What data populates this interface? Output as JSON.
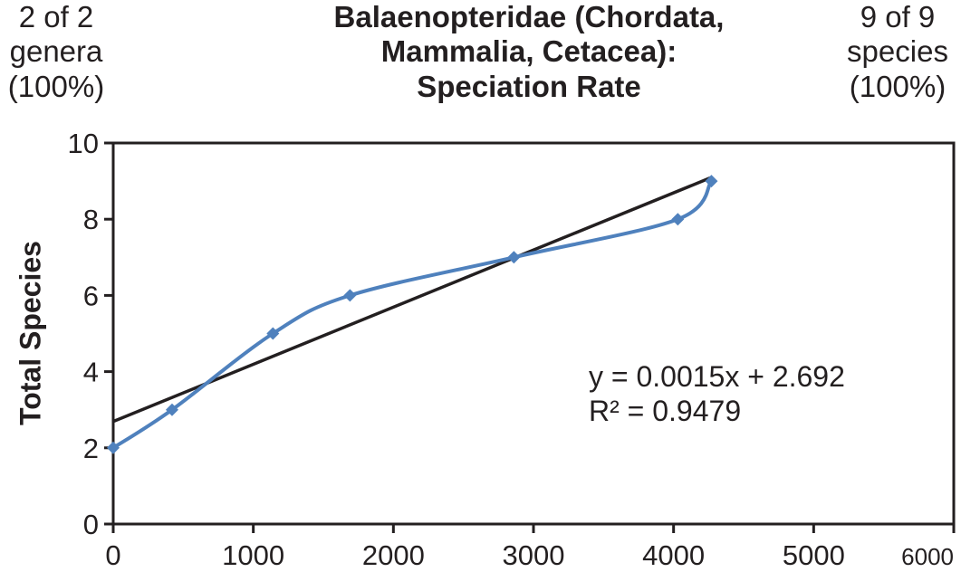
{
  "header": {
    "left": [
      "2 of 2",
      "genera",
      "(100%)"
    ],
    "title": [
      "Balaenopteridae (Chordata,",
      "Mammalia, Cetacea):",
      "Speciation Rate"
    ],
    "right": [
      "9 of 9",
      "species",
      "(100%)"
    ]
  },
  "chart_data": {
    "type": "scatter",
    "title": "Balaenopteridae (Chordata, Mammalia, Cetacea): Speciation Rate",
    "xlabel": "",
    "ylabel": "Total Species",
    "xlim": [
      0,
      6000
    ],
    "ylim": [
      0,
      10
    ],
    "x_ticks": [
      0,
      1000,
      2000,
      3000,
      4000,
      5000,
      6000
    ],
    "y_ticks": [
      0,
      2,
      4,
      6,
      8,
      10
    ],
    "grid": false,
    "series": [
      {
        "x": [
          0,
          420,
          1140,
          1690,
          2860,
          4030,
          4270
        ],
        "y": [
          2,
          3,
          5,
          6,
          7,
          8,
          9
        ],
        "color": "#4f81bd",
        "marker": "diamond",
        "line": "smooth"
      }
    ],
    "trendline": {
      "slope": 0.0015,
      "intercept": 2.692,
      "x_range": [
        0,
        4270
      ],
      "color": "#231f20",
      "equation": "y = 0.0015x + 2.692",
      "r_squared": "R² = 0.9479"
    }
  }
}
